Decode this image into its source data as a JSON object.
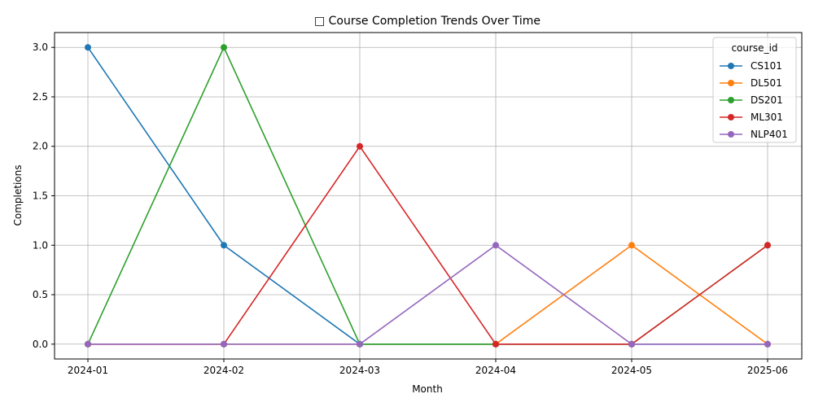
{
  "chart_data": {
    "type": "line",
    "title": "□ Course Completion Trends Over Time",
    "xlabel": "Month",
    "ylabel": "Completions",
    "categories": [
      "2024-01",
      "2024-02",
      "2024-03",
      "2024-04",
      "2024-05",
      "2025-06"
    ],
    "ylim": [
      -0.15,
      3.15
    ],
    "yticks": [
      "0.0",
      "0.5",
      "1.0",
      "1.5",
      "2.0",
      "2.5",
      "3.0"
    ],
    "grid": true,
    "legend": {
      "title": "course_id",
      "placement": "top-right"
    },
    "series": [
      {
        "name": "CS101",
        "color": "#1f77b4",
        "values": [
          3,
          1,
          0,
          0,
          0,
          0
        ]
      },
      {
        "name": "DL501",
        "color": "#ff7f0e",
        "values": [
          0,
          0,
          0,
          0,
          1,
          0
        ]
      },
      {
        "name": "DS201",
        "color": "#2ca02c",
        "values": [
          0,
          3,
          0,
          0,
          0,
          1
        ]
      },
      {
        "name": "ML301",
        "color": "#d62728",
        "values": [
          0,
          0,
          2,
          0,
          0,
          1
        ]
      },
      {
        "name": "NLP401",
        "color": "#9467bd",
        "values": [
          0,
          0,
          0,
          1,
          0,
          0
        ]
      }
    ]
  }
}
